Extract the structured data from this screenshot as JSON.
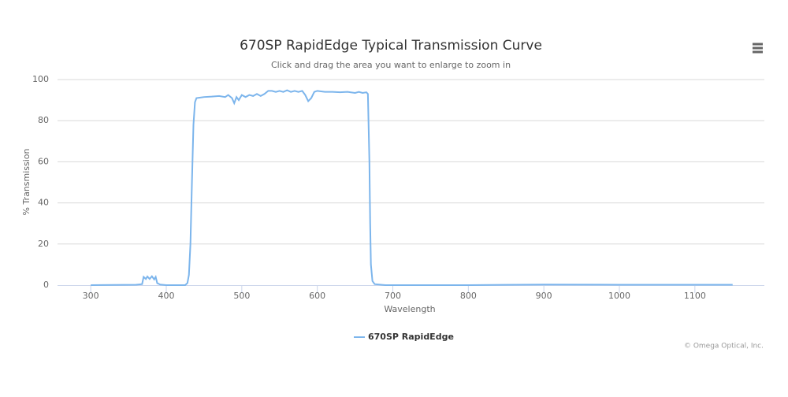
{
  "chart_data": {
    "type": "line",
    "title": "670SP RapidEdge Typical Transmission Curve",
    "subtitle": "Click and drag the area you want to enlarge to zoom in",
    "xlabel": "Wavelength",
    "ylabel": "% Transmission",
    "credits": "© Omega Optical, Inc.",
    "x": [
      300,
      360,
      368,
      370,
      373,
      375,
      378,
      381,
      384,
      386,
      388,
      392,
      400,
      425,
      428,
      430,
      432,
      434,
      436,
      438,
      440,
      450,
      460,
      470,
      478,
      482,
      487,
      490,
      493,
      496,
      500,
      505,
      510,
      515,
      520,
      525,
      530,
      535,
      540,
      545,
      550,
      555,
      560,
      565,
      570,
      575,
      580,
      584,
      588,
      592,
      596,
      600,
      610,
      620,
      630,
      640,
      650,
      655,
      660,
      665,
      667,
      669,
      670,
      671,
      673,
      676,
      690,
      800,
      900,
      1000,
      1150
    ],
    "series": [
      {
        "name": "670SP RapidEdge",
        "color": "#7cb5ec",
        "values": [
          0,
          0.2,
          0.5,
          4,
          3,
          4.2,
          3,
          4.3,
          2.8,
          4,
          1,
          0.3,
          0,
          0,
          1,
          5,
          20,
          50,
          78,
          89,
          91,
          91.5,
          91.7,
          92,
          91.5,
          92.5,
          91,
          88.5,
          91.5,
          90,
          92.5,
          91.5,
          92.5,
          92,
          93,
          92,
          93,
          94.5,
          94.5,
          94,
          94.5,
          94,
          94.8,
          94,
          94.5,
          94,
          94.5,
          92.5,
          89.5,
          91,
          94,
          94.5,
          94,
          94,
          93.8,
          94,
          93.5,
          94,
          93.5,
          93.8,
          93,
          60,
          30,
          10,
          2,
          0.5,
          0,
          0,
          0.3,
          0.2,
          0.2
        ]
      }
    ],
    "xlim": [
      256,
      1192
    ],
    "ylim": [
      0,
      100
    ],
    "xticks": [
      300,
      400,
      500,
      600,
      700,
      800,
      900,
      1000,
      1100
    ],
    "yticks": [
      0,
      20,
      40,
      60,
      80,
      100
    ],
    "grid": true,
    "legend": "bottom"
  }
}
